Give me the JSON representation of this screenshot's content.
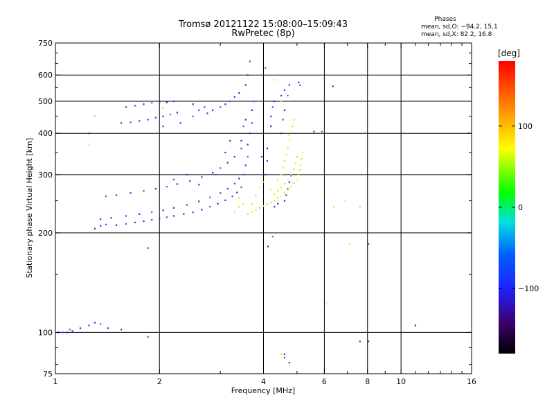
{
  "chart_data": {
    "type": "scatter",
    "title": "Tromsø 20121122 15:08:00–15:09:43",
    "subtitle": "RwPretec (8p)",
    "xlabel": "Frequency [MHz]",
    "ylabel": "Stationary phase Virtual Height [km]",
    "x_scale": "log",
    "y_scale": "log",
    "xlim": [
      1,
      16
    ],
    "ylim": [
      75,
      750
    ],
    "x_ticks": [
      1,
      2,
      4,
      6,
      8,
      10,
      16
    ],
    "y_ticks": [
      75,
      100,
      200,
      300,
      400,
      500,
      600,
      750
    ],
    "x_tick_labels": [
      "1",
      "2",
      "4",
      "6",
      "8",
      "10",
      "16"
    ],
    "y_tick_labels": [
      "75",
      "100",
      "200",
      "300",
      "400",
      "500",
      "600",
      "750"
    ],
    "x_gridlines": [
      2,
      4,
      6,
      8,
      10
    ],
    "y_gridlines": [
      100,
      200,
      300,
      400,
      500,
      600
    ],
    "grid": true,
    "legend": {
      "title": "Phases",
      "lines": [
        "mean, sd,O: −94.2, 15.1",
        "mean, sd,X:  82.2, 16.8"
      ],
      "placement": "top-right"
    },
    "colorbar": {
      "label": "[deg]",
      "ticks": [
        -100,
        0,
        100
      ],
      "tick_labels": [
        "−100",
        "0",
        "100"
      ],
      "range": [
        -180,
        180
      ],
      "colormap": "rainbow"
    },
    "series": [
      {
        "name": "O",
        "mean_phase": -94.2,
        "sd": 15.1,
        "points": [
          [
            1.02,
            100
          ],
          [
            1.05,
            100
          ],
          [
            1.08,
            100
          ],
          [
            1.1,
            102
          ],
          [
            1.12,
            101
          ],
          [
            1.18,
            103
          ],
          [
            1.25,
            105
          ],
          [
            1.3,
            107
          ],
          [
            1.35,
            106
          ],
          [
            1.42,
            103
          ],
          [
            1.55,
            102
          ],
          [
            1.85,
            97
          ],
          [
            1.25,
            400
          ],
          [
            1.3,
            450
          ],
          [
            1.3,
            206
          ],
          [
            1.35,
            210
          ],
          [
            1.4,
            212
          ],
          [
            1.5,
            211
          ],
          [
            1.6,
            213
          ],
          [
            1.7,
            215
          ],
          [
            1.8,
            217
          ],
          [
            1.9,
            219
          ],
          [
            2.0,
            221
          ],
          [
            2.1,
            223
          ],
          [
            2.2,
            225
          ],
          [
            2.35,
            228
          ],
          [
            2.5,
            231
          ],
          [
            2.65,
            235
          ],
          [
            2.8,
            240
          ],
          [
            2.95,
            245
          ],
          [
            3.1,
            251
          ],
          [
            3.25,
            258
          ],
          [
            3.35,
            265
          ],
          [
            3.45,
            275
          ],
          [
            1.35,
            220
          ],
          [
            1.45,
            222
          ],
          [
            1.6,
            225
          ],
          [
            1.75,
            228
          ],
          [
            1.9,
            231
          ],
          [
            2.05,
            234
          ],
          [
            2.2,
            238
          ],
          [
            2.4,
            243
          ],
          [
            2.6,
            249
          ],
          [
            2.8,
            256
          ],
          [
            3.0,
            264
          ],
          [
            3.15,
            272
          ],
          [
            3.3,
            282
          ],
          [
            3.4,
            292
          ],
          [
            1.4,
            258
          ],
          [
            1.5,
            260
          ],
          [
            1.65,
            264
          ],
          [
            1.8,
            268
          ],
          [
            1.95,
            272
          ],
          [
            2.1,
            276
          ],
          [
            2.25,
            281
          ],
          [
            2.45,
            287
          ],
          [
            2.65,
            295
          ],
          [
            2.85,
            304
          ],
          [
            3.0,
            314
          ],
          [
            3.15,
            326
          ],
          [
            3.3,
            340
          ],
          [
            3.45,
            360
          ],
          [
            1.55,
            430
          ],
          [
            1.65,
            432
          ],
          [
            1.75,
            436
          ],
          [
            1.85,
            440
          ],
          [
            1.95,
            446
          ],
          [
            2.05,
            450
          ],
          [
            2.15,
            456
          ],
          [
            2.25,
            462
          ],
          [
            1.6,
            480
          ],
          [
            1.7,
            485
          ],
          [
            1.8,
            490
          ],
          [
            1.9,
            495
          ],
          [
            2.0,
            498
          ],
          [
            2.1,
            496
          ],
          [
            2.2,
            500
          ],
          [
            2.5,
            490
          ],
          [
            2.6,
            470
          ],
          [
            2.7,
            480
          ],
          [
            2.85,
            470
          ],
          [
            3.0,
            480
          ],
          [
            3.1,
            490
          ],
          [
            3.2,
            500
          ],
          [
            3.3,
            515
          ],
          [
            3.4,
            530
          ],
          [
            3.5,
            300
          ],
          [
            3.55,
            320
          ],
          [
            3.6,
            340
          ],
          [
            3.6,
            370
          ],
          [
            3.65,
            400
          ],
          [
            3.7,
            430
          ],
          [
            3.7,
            470
          ],
          [
            3.75,
            500
          ],
          [
            3.55,
            560
          ],
          [
            3.6,
            600
          ],
          [
            3.65,
            660
          ],
          [
            3.45,
            380
          ],
          [
            3.5,
            420
          ],
          [
            3.55,
            440
          ],
          [
            4.05,
            300
          ],
          [
            4.1,
            330
          ],
          [
            4.1,
            360
          ],
          [
            4.15,
            400
          ],
          [
            4.2,
            420
          ],
          [
            4.2,
            450
          ],
          [
            4.25,
            480
          ],
          [
            4.3,
            500
          ],
          [
            4.05,
            630
          ],
          [
            3.95,
            340
          ],
          [
            4.5,
            400
          ],
          [
            4.55,
            440
          ],
          [
            4.6,
            470
          ],
          [
            4.7,
            520
          ],
          [
            4.75,
            560
          ],
          [
            4.5,
            520
          ],
          [
            4.6,
            540
          ],
          [
            5.05,
            570
          ],
          [
            5.1,
            560
          ],
          [
            4.6,
            250
          ],
          [
            4.65,
            260
          ],
          [
            4.7,
            272
          ],
          [
            4.75,
            285
          ],
          [
            4.8,
            298
          ],
          [
            4.3,
            240
          ],
          [
            4.4,
            245
          ],
          [
            2.05,
            420
          ],
          [
            2.3,
            430
          ],
          [
            2.5,
            450
          ],
          [
            2.75,
            460
          ],
          [
            2.4,
            300
          ],
          [
            2.2,
            290
          ],
          [
            2.6,
            280
          ],
          [
            2.9,
            300
          ],
          [
            3.1,
            350
          ],
          [
            3.2,
            380
          ],
          [
            1.85,
            180
          ],
          [
            4.12,
            182
          ],
          [
            4.25,
            195
          ],
          [
            7.6,
            94
          ],
          [
            8.05,
            94
          ],
          [
            8.05,
            185
          ],
          [
            11.0,
            105
          ],
          [
            4.6,
            84
          ],
          [
            4.6,
            86
          ],
          [
            4.75,
            81
          ],
          [
            5.6,
            405
          ],
          [
            6.35,
            555
          ],
          [
            5.9,
            405
          ]
        ]
      },
      {
        "name": "X",
        "mean_phase": 82.2,
        "sd": 16.8,
        "points": [
          [
            3.6,
            228
          ],
          [
            3.7,
            232
          ],
          [
            3.8,
            235
          ],
          [
            3.9,
            238
          ],
          [
            4.0,
            241
          ],
          [
            4.1,
            244
          ],
          [
            4.2,
            247
          ],
          [
            4.3,
            251
          ],
          [
            4.4,
            255
          ],
          [
            4.5,
            259
          ],
          [
            4.6,
            264
          ],
          [
            4.7,
            270
          ],
          [
            4.8,
            276
          ],
          [
            4.9,
            283
          ],
          [
            5.0,
            290
          ],
          [
            5.05,
            300
          ],
          [
            5.1,
            310
          ],
          [
            5.12,
            320
          ],
          [
            5.15,
            335
          ],
          [
            5.18,
            350
          ],
          [
            4.3,
            262
          ],
          [
            4.4,
            268
          ],
          [
            4.5,
            274
          ],
          [
            4.6,
            282
          ],
          [
            4.7,
            290
          ],
          [
            4.8,
            300
          ],
          [
            4.9,
            312
          ],
          [
            4.95,
            325
          ],
          [
            5.0,
            340
          ],
          [
            4.5,
            300
          ],
          [
            4.55,
            315
          ],
          [
            4.6,
            330
          ],
          [
            4.65,
            345
          ],
          [
            4.7,
            362
          ],
          [
            4.75,
            380
          ],
          [
            4.75,
            395
          ],
          [
            4.85,
            420
          ],
          [
            4.9,
            440
          ],
          [
            4.5,
            500
          ],
          [
            3.9,
            275
          ],
          [
            4.0,
            285
          ],
          [
            3.7,
            245
          ],
          [
            3.4,
            255
          ],
          [
            3.8,
            260
          ],
          [
            4.2,
            270
          ],
          [
            4.4,
            290
          ],
          [
            3.5,
            245
          ],
          [
            3.3,
            232
          ],
          [
            2.05,
            478
          ],
          [
            1.25,
            370
          ],
          [
            1.3,
            450
          ],
          [
            6.4,
            240
          ],
          [
            6.9,
            250
          ],
          [
            7.6,
            240
          ],
          [
            6.1,
            122
          ],
          [
            7.1,
            185
          ],
          [
            4.5,
            86
          ],
          [
            4.3,
            580
          ],
          [
            3.4,
            240
          ]
        ]
      }
    ]
  }
}
